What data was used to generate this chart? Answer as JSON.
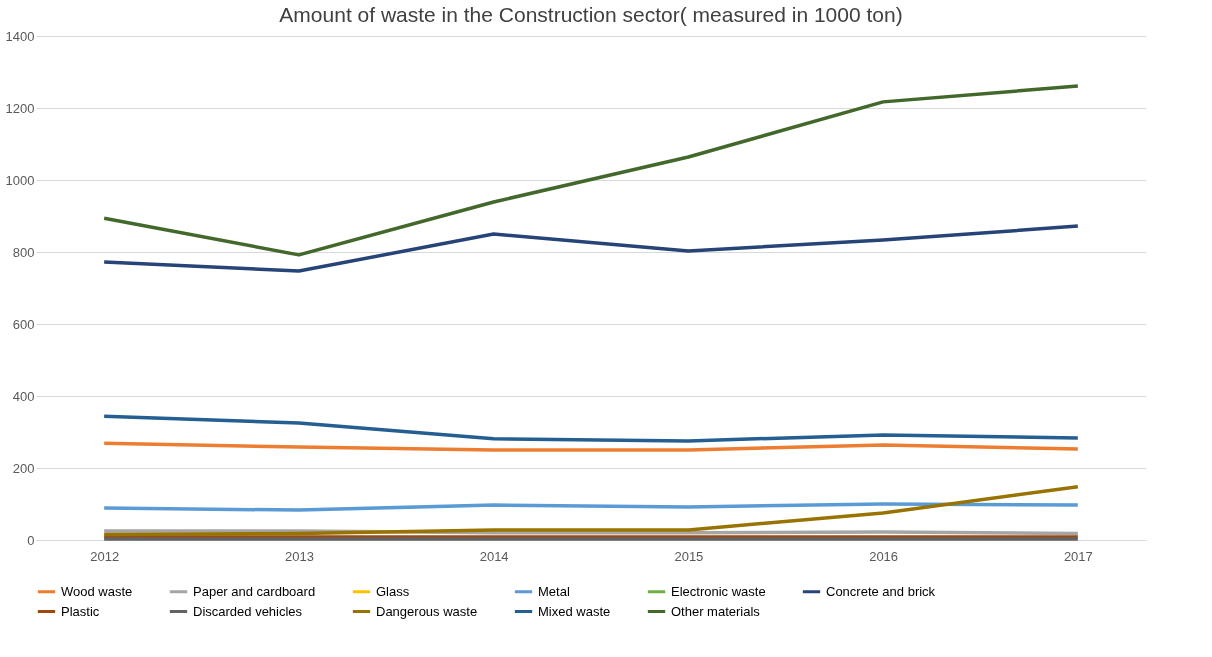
{
  "chart_data": {
    "type": "line",
    "title": "Amount of waste in the Construction sector( measured in 1000 ton)",
    "categories": [
      "2012",
      "2013",
      "2014",
      "2015",
      "2016",
      "2017"
    ],
    "ylim": [
      0,
      1400
    ],
    "yticks": [
      0,
      200,
      400,
      600,
      800,
      1000,
      1200,
      1400
    ],
    "grid": "y",
    "legend": "bottom",
    "marker": "none",
    "line_style": "solid",
    "series": [
      {
        "name": "Wood waste",
        "color": "#ed7d31",
        "values": [
          269,
          258,
          250,
          250,
          264,
          253
        ]
      },
      {
        "name": "Paper and cardboard",
        "color": "#a5a5a5",
        "values": [
          25,
          25,
          20,
          20,
          22,
          18
        ]
      },
      {
        "name": "Glass",
        "color": "#ffc000",
        "values": [
          null,
          null,
          null,
          null,
          null,
          null
        ]
      },
      {
        "name": "Metal",
        "color": "#5b9bd5",
        "values": [
          89,
          83,
          97,
          92,
          100,
          97
        ]
      },
      {
        "name": "Electronic waste",
        "color": "#70ad47",
        "values": [
          null,
          null,
          null,
          null,
          null,
          null
        ]
      },
      {
        "name": "Concrete and brick",
        "color": "#264478",
        "values": [
          772,
          747,
          850,
          803,
          833,
          872
        ]
      },
      {
        "name": "Plastic",
        "color": "#9e480e",
        "values": [
          8,
          8,
          8,
          8,
          8,
          8
        ]
      },
      {
        "name": "Discarded vehicles",
        "color": "#636363",
        "values": [
          3,
          3,
          3,
          3,
          3,
          3
        ]
      },
      {
        "name": "Dangerous waste",
        "color": "#997300",
        "values": [
          15,
          18,
          28,
          28,
          75,
          148
        ]
      },
      {
        "name": "Mixed waste",
        "color": "#255e91",
        "values": [
          344,
          325,
          281,
          275,
          292,
          283
        ]
      },
      {
        "name": "Other materials",
        "color": "#43682b",
        "values": [
          894,
          792,
          939,
          1064,
          1217,
          1261
        ]
      }
    ]
  }
}
